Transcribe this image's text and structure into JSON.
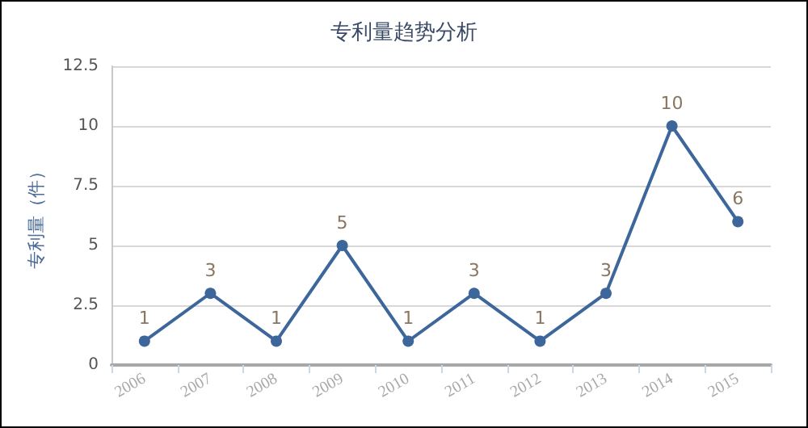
{
  "chart_data": {
    "type": "line",
    "title": "专利量趋势分析",
    "ylabel": "专利量（件）",
    "categories": [
      "2006",
      "2007",
      "2008",
      "2009",
      "2010",
      "2011",
      "2012",
      "2013",
      "2014",
      "2015"
    ],
    "series": [
      {
        "color": "#3d679b",
        "values": [
          1,
          3,
          1,
          5,
          1,
          3,
          1,
          3,
          10,
          6
        ]
      }
    ],
    "ylim": [
      0,
      12.5
    ],
    "yticks": [
      0,
      2.5,
      5,
      7.5,
      10,
      12.5
    ],
    "grid": "y",
    "marker": "circle",
    "line_style": "solid",
    "data_labels": true
  }
}
